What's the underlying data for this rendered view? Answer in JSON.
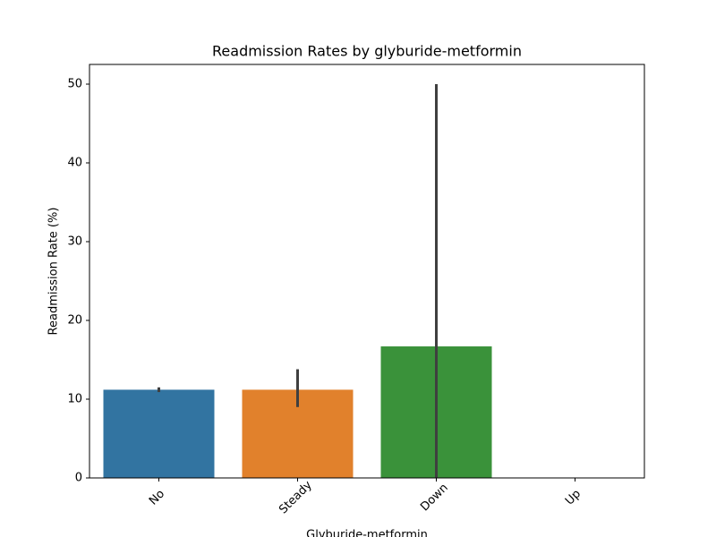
{
  "chart_data": {
    "type": "bar",
    "title": "Readmission Rates by glyburide-metformin",
    "x_label": "Glyburide-metformin",
    "y_label": "Readmission Rate (%)",
    "categories": [
      "No",
      "Steady",
      "Down",
      "Up"
    ],
    "values": [
      11.2,
      11.2,
      16.7,
      0
    ],
    "ci_low": [
      10.9,
      9.0,
      0,
      null
    ],
    "ci_high": [
      11.5,
      13.8,
      50,
      null
    ],
    "colors": [
      "#3274a1",
      "#e1812c",
      "#3a923a",
      "#c03d3e"
    ],
    "ylim": [
      0,
      52.5
    ],
    "yticks": [
      0,
      10,
      20,
      30,
      40,
      50
    ],
    "grid": false
  }
}
